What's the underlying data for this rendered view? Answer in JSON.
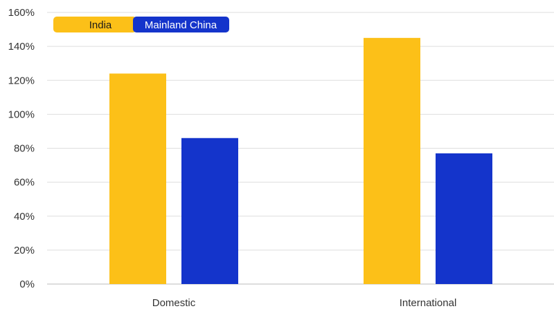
{
  "chart_data": {
    "type": "bar",
    "title": "",
    "xlabel": "",
    "ylabel": "",
    "categories": [
      "Domestic",
      "International"
    ],
    "series": [
      {
        "name": "India",
        "values": [
          124,
          145
        ],
        "color": "#FCC018"
      },
      {
        "name": "Mainland China",
        "values": [
          86,
          77
        ],
        "color": "#1434CB"
      }
    ],
    "ylim": [
      0,
      160
    ],
    "yticks": [
      0,
      20,
      40,
      60,
      80,
      100,
      120,
      140,
      160
    ],
    "ytick_labels": [
      "0%",
      "20%",
      "40%",
      "60%",
      "80%",
      "100%",
      "120%",
      "140%",
      "160%"
    ],
    "grid": true,
    "legend_position": "top-left",
    "legend_text_colors": [
      "#1A1A1A",
      "#FFFFFF"
    ],
    "gridline_color": "#DDDDDD"
  }
}
